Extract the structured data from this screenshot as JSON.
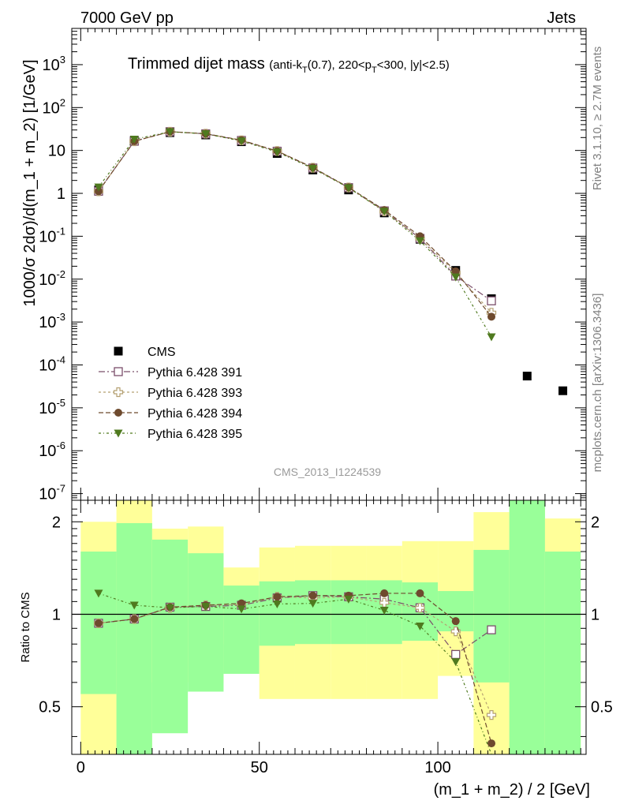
{
  "header": {
    "left": "7000 GeV pp",
    "right": "Jets"
  },
  "title": {
    "main": "Trimmed dijet mass",
    "sub_prefix": "(anti-k",
    "sub_k_sub": "T",
    "sub_mid": "(0.7), 220<p",
    "sub_p_sub": "T",
    "sub_suffix": "<300, |y|<2.5)"
  },
  "side_labels": {
    "rivet": "Rivet 3.1.10, ≥ 2.7M events",
    "mcplots": "mcplots.cern.ch [arXiv:1306.3436]"
  },
  "watermark": "CMS_2013_I1224539",
  "chart_data": {
    "type": "scatter",
    "xlabel": "(m_1 + m_2) / 2 [GeV]",
    "ylabel": "1000/σ 2dσ)/d(m_1 + m_2) [1/GeV]",
    "ratio_ylabel": "Ratio to CMS",
    "xlim": [
      -2.5,
      141.5
    ],
    "ylim": [
      7e-08,
      7000
    ],
    "yscale": "log",
    "ratio_ylim": [
      0.35,
      2.35
    ],
    "ratio_yscale": "log",
    "x_ticks": [
      {
        "v": 0,
        "label": "0"
      },
      {
        "v": 50,
        "label": "50"
      },
      {
        "v": 100,
        "label": "100"
      }
    ],
    "y_ticks": [
      {
        "v": 1e-07,
        "base": "10",
        "exp": "-7"
      },
      {
        "v": 1e-06,
        "base": "10",
        "exp": "-6"
      },
      {
        "v": 1e-05,
        "base": "10",
        "exp": "-5"
      },
      {
        "v": 0.0001,
        "base": "10",
        "exp": "-4"
      },
      {
        "v": 0.001,
        "base": "10",
        "exp": "-3"
      },
      {
        "v": 0.01,
        "base": "10",
        "exp": "-2"
      },
      {
        "v": 0.1,
        "base": "10",
        "exp": "-1"
      },
      {
        "v": 1,
        "base": "1",
        "exp": ""
      },
      {
        "v": 10,
        "base": "10",
        "exp": ""
      },
      {
        "v": 100,
        "base": "10",
        "exp": "2"
      },
      {
        "v": 1000,
        "base": "10",
        "exp": "3"
      }
    ],
    "ratio_ticks": [
      {
        "v": 0.5,
        "label": "0.5"
      },
      {
        "v": 1,
        "label": "1"
      },
      {
        "v": 2,
        "label": "2"
      }
    ],
    "bins": [
      {
        "lo": 0,
        "hi": 10
      },
      {
        "lo": 10,
        "hi": 20
      },
      {
        "lo": 20,
        "hi": 30
      },
      {
        "lo": 30,
        "hi": 40
      },
      {
        "lo": 40,
        "hi": 50
      },
      {
        "lo": 50,
        "hi": 60
      },
      {
        "lo": 60,
        "hi": 70
      },
      {
        "lo": 70,
        "hi": 80
      },
      {
        "lo": 80,
        "hi": 90
      },
      {
        "lo": 90,
        "hi": 100
      },
      {
        "lo": 100,
        "hi": 110
      },
      {
        "lo": 110,
        "hi": 120
      },
      {
        "lo": 120,
        "hi": 130
      },
      {
        "lo": 130,
        "hi": 140
      }
    ],
    "band_yellow": [
      [
        0.35,
        2.0
      ],
      [
        0.35,
        2.35
      ],
      [
        0.6,
        1.9
      ],
      [
        0.6,
        1.93
      ],
      [
        0.8,
        1.42
      ],
      [
        0.53,
        1.65
      ],
      [
        0.53,
        1.67
      ],
      [
        0.53,
        1.67
      ],
      [
        0.53,
        1.67
      ],
      [
        0.53,
        1.73
      ],
      [
        0.63,
        1.73
      ],
      [
        0.35,
        2.15
      ],
      [
        0.35,
        2.35
      ],
      [
        0.35,
        2.05
      ]
    ],
    "band_green": [
      [
        0.55,
        1.6
      ],
      [
        0.35,
        1.98
      ],
      [
        0.41,
        1.75
      ],
      [
        0.56,
        1.58
      ],
      [
        0.64,
        1.24
      ],
      [
        0.79,
        1.28
      ],
      [
        0.8,
        1.29
      ],
      [
        0.8,
        1.29
      ],
      [
        0.8,
        1.29
      ],
      [
        0.82,
        1.27
      ],
      [
        0.88,
        1.19
      ],
      [
        0.6,
        1.62
      ],
      [
        0.35,
        2.35
      ],
      [
        0.35,
        1.6
      ]
    ],
    "series": [
      {
        "name": "CMS",
        "color": "#000000",
        "marker": "square-filled",
        "x": [
          5,
          15,
          25,
          35,
          45,
          55,
          65,
          75,
          85,
          95,
          105,
          115,
          125,
          135
        ],
        "y": [
          1.2,
          17,
          26,
          23,
          16,
          8.5,
          3.5,
          1.2,
          0.35,
          0.085,
          0.016,
          0.0035,
          5.5e-05,
          2.5e-05
        ]
      },
      {
        "name": "Pythia 6.428 391",
        "color": "#7b4f6b",
        "marker": "square-open",
        "dash": "8,3,2,3",
        "x": [
          5,
          15,
          25,
          35,
          45,
          55,
          65,
          75,
          85,
          95,
          105,
          115
        ],
        "y": [
          1.12,
          16.4,
          27.4,
          24.4,
          17.1,
          9.6,
          3.9,
          1.36,
          0.39,
          0.089,
          0.0118,
          0.00312
        ],
        "ratio": [
          0.935,
          0.965,
          1.055,
          1.06,
          1.07,
          1.13,
          1.15,
          1.14,
          1.12,
          1.05,
          0.74,
          0.89
        ]
      },
      {
        "name": "Pythia 6.428 393",
        "color": "#b5a072",
        "marker": "cross-open",
        "dash": "3,3",
        "x": [
          5,
          15,
          25,
          35,
          45,
          55,
          65,
          75,
          85,
          95,
          105,
          115
        ],
        "y": [
          1.12,
          16.4,
          27.3,
          24.6,
          17.2,
          9.7,
          3.95,
          1.37,
          0.38,
          0.089,
          0.0141,
          0.00165
        ],
        "ratio": [
          0.935,
          0.965,
          1.05,
          1.07,
          1.075,
          1.14,
          1.13,
          1.14,
          1.09,
          1.05,
          0.88,
          0.47
        ]
      },
      {
        "name": "Pythia 6.428 394",
        "color": "#6e4a2e",
        "marker": "circle-filled",
        "dash": "6,3",
        "x": [
          5,
          15,
          25,
          35,
          45,
          55,
          65,
          75,
          85,
          95,
          105,
          115
        ],
        "y": [
          1.12,
          16.4,
          27.4,
          24.6,
          17.4,
          9.7,
          4.0,
          1.38,
          0.41,
          0.1,
          0.0152,
          0.00133
        ],
        "ratio": [
          0.935,
          0.965,
          1.055,
          1.07,
          1.085,
          1.14,
          1.15,
          1.15,
          1.17,
          1.17,
          0.95,
          0.38
        ]
      },
      {
        "name": "Pythia 6.428 395",
        "color": "#4f7a1f",
        "marker": "triangle-down-filled",
        "dash": "3,3,1,3",
        "x": [
          5,
          15,
          25,
          35,
          45,
          55,
          65,
          75,
          85,
          95,
          105,
          115
        ],
        "y": [
          1.4,
          18.2,
          27.3,
          24.4,
          16.6,
          9.2,
          3.8,
          1.35,
          0.38,
          0.078,
          0.0112,
          0.00045
        ],
        "ratio": [
          1.17,
          1.07,
          1.05,
          1.06,
          1.04,
          1.08,
          1.085,
          1.12,
          1.03,
          0.915,
          0.7,
          0.13
        ]
      }
    ],
    "legend": {
      "placement": "lower-left"
    }
  }
}
